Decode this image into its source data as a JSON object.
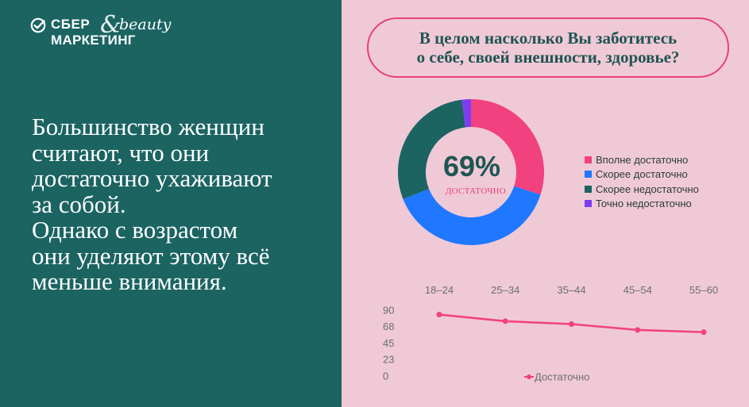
{
  "logo": {
    "line1": "СБЕР",
    "line2": "МАРКЕТИНГ",
    "amp": "&",
    "beauty": "beauty"
  },
  "headline": [
    "Большинство женщин",
    "считают, что они",
    "достаточно ухаживают",
    "за собой.",
    "Однако с возрастом",
    "они уделяют этому всё",
    "меньше внимания."
  ],
  "question": [
    "В целом насколько Вы заботитесь",
    "о себе, своей внешности, здоровье?"
  ],
  "colors": {
    "left_bg": "#1b6462",
    "right_bg": "#f0c9d6",
    "accent": "#e8407c",
    "text_dark": "#1e5553"
  },
  "chart_data": [
    {
      "type": "pie",
      "center_value": "69%",
      "center_label": "ДОСТАТОЧНО",
      "legend_placement": "right",
      "slices": [
        {
          "name": "Вполне достаточно",
          "value": 30,
          "color": "#f2417f"
        },
        {
          "name": "Скорее достаточно",
          "value": 39,
          "color": "#1f78ff"
        },
        {
          "name": "Скорее недостаточно",
          "value": 29,
          "color": "#1b6462"
        },
        {
          "name": "Точно недостаточно",
          "value": 2,
          "color": "#7c3df2"
        }
      ]
    },
    {
      "type": "line",
      "categories": [
        "18–24",
        "25–34",
        "35–44",
        "45–54",
        "55–60"
      ],
      "y_ticks": [
        "90",
        "68",
        "45",
        "23",
        "0"
      ],
      "ylim": [
        0,
        90
      ],
      "grid": false,
      "legend_placement": "bottom",
      "series": [
        {
          "name": "Достаточно",
          "values": [
            84,
            75,
            71,
            63,
            60
          ],
          "color": "#f2417f"
        }
      ]
    }
  ]
}
